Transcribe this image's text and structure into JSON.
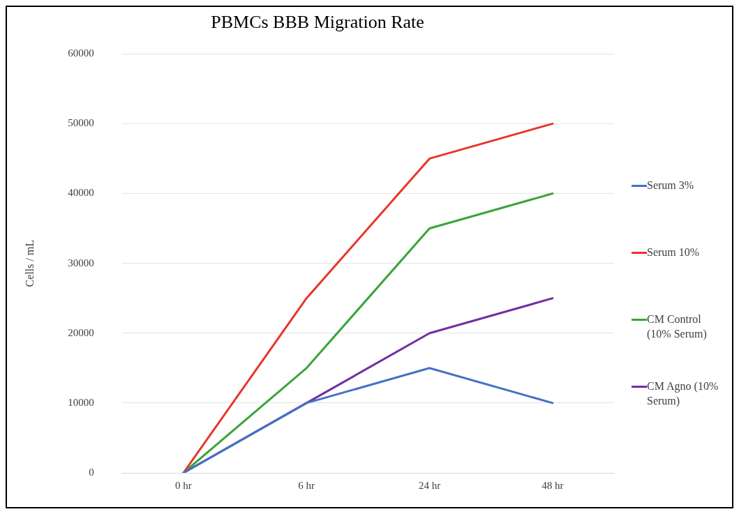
{
  "chart_data": {
    "type": "line",
    "title": "PBMCs BBB Migration Rate",
    "ylabel": "Cells / mL",
    "categories": [
      "0 hr",
      "6 hr",
      "24 hr",
      "48 hr"
    ],
    "series": [
      {
        "name": "Serum 3%",
        "color": "#4472c4",
        "values": [
          0,
          10000,
          15000,
          10000
        ]
      },
      {
        "name": "Serum 10%",
        "color": "#e8352a",
        "values": [
          0,
          25000,
          45000,
          50000
        ]
      },
      {
        "name": "CM Control (10% Serum)",
        "color": "#3aa43a",
        "values": [
          0,
          15000,
          35000,
          40000
        ]
      },
      {
        "name": "CM Agno (10% Serum)",
        "color": "#7030a0",
        "values": [
          0,
          10000,
          20000,
          25000
        ]
      }
    ],
    "ylim": [
      0,
      60000
    ],
    "yticks": [
      0,
      10000,
      20000,
      30000,
      40000,
      50000,
      60000
    ],
    "grid": "y",
    "legend": "right",
    "marker": "none",
    "line_style": "solid"
  }
}
